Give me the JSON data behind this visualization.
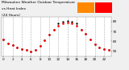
{
  "bg_color": "#f0f0f0",
  "plot_bg": "#ffffff",
  "temp_color": "#ff0000",
  "heat_color": "#000000",
  "grid_color": "#999999",
  "hours": [
    0,
    1,
    2,
    3,
    4,
    5,
    6,
    7,
    8,
    9,
    10,
    11,
    12,
    13,
    14,
    15,
    16,
    17,
    18,
    19,
    20,
    21,
    22,
    23
  ],
  "temp": [
    62,
    58,
    56,
    54,
    52,
    51,
    50,
    51,
    55,
    61,
    67,
    72,
    76,
    78,
    79,
    78,
    76,
    72,
    68,
    62,
    57,
    54,
    52,
    51
  ],
  "heat_index": [
    62,
    58,
    56,
    54,
    52,
    51,
    50,
    51,
    55,
    61,
    67,
    72,
    78,
    80,
    81,
    80,
    78,
    72,
    68,
    62,
    57,
    54,
    52,
    51
  ],
  "ylim": [
    45,
    85
  ],
  "yticks": [
    50,
    60,
    70,
    80
  ],
  "ytick_labels": [
    "50",
    "60",
    "70",
    "80"
  ],
  "grid_x": [
    0,
    2,
    4,
    6,
    8,
    10,
    12,
    14,
    16,
    18,
    20,
    22
  ],
  "xtick_vals": [
    0,
    2,
    4,
    6,
    8,
    10,
    12,
    14,
    16,
    18,
    20,
    22
  ],
  "xtick_labels": [
    "0",
    "2",
    "4",
    "6",
    "8",
    "10",
    "12",
    "14",
    "16",
    "18",
    "20",
    "22"
  ],
  "tick_fontsize": 3.0,
  "legend_box1_color": "#ff8800",
  "legend_box2_color": "#ff0000",
  "title_line1": "Milwaukee Weather Outdoor Temperature",
  "title_line2": "vs Heat Index",
  "title_line3": "(24 Hours)",
  "title_fontsize": 3.2,
  "title_color": "#000000"
}
